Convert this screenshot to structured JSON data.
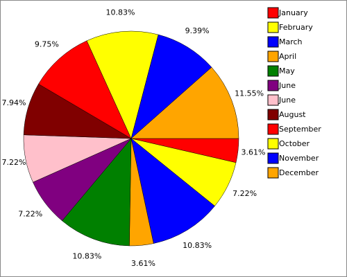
{
  "chart_data": {
    "type": "pie",
    "categories": [
      "January",
      "February",
      "March",
      "April",
      "May",
      "June",
      "June",
      "August",
      "September",
      "October",
      "November",
      "December"
    ],
    "values": [
      3.61,
      7.22,
      10.83,
      3.61,
      10.83,
      7.22,
      7.22,
      7.94,
      9.75,
      10.83,
      9.39,
      11.55
    ],
    "value_labels": [
      "3.61%",
      "7.22%",
      "10.83%",
      "3.61%",
      "10.83%",
      "7.22%",
      "7.22%",
      "7.94%",
      "9.75%",
      "10.83%",
      "9.39%",
      "11.55%"
    ],
    "colors": [
      "#ff0000",
      "#ffff00",
      "#0000ff",
      "#ffa500",
      "#008000",
      "#800080",
      "#ffc0cb",
      "#800000",
      "#ff0000",
      "#ffff00",
      "#0000ff",
      "#ffa500"
    ]
  }
}
